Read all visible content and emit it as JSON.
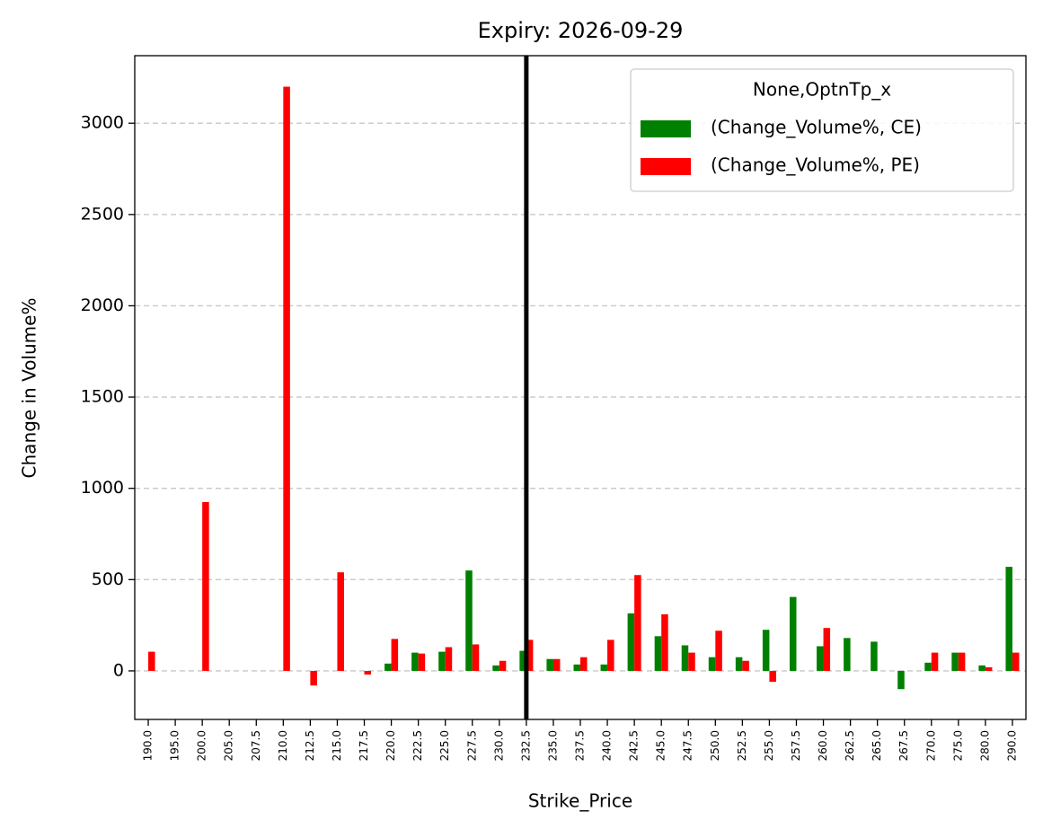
{
  "chart_data": {
    "type": "bar",
    "title": "Expiry: 2026-09-29",
    "x_label": "Strike_Price",
    "y_label": "Change in Volume%",
    "legend_title": "None,OptnTp_x",
    "legend_position": "upper right",
    "categories": [
      "190.0",
      "195.0",
      "200.0",
      "205.0",
      "207.5",
      "210.0",
      "212.5",
      "215.0",
      "217.5",
      "220.0",
      "222.5",
      "225.0",
      "227.5",
      "230.0",
      "232.5",
      "235.0",
      "237.5",
      "240.0",
      "242.5",
      "245.0",
      "247.5",
      "250.0",
      "252.5",
      "255.0",
      "257.5",
      "260.0",
      "262.5",
      "265.0",
      "267.5",
      "270.0",
      "275.0",
      "280.0",
      "290.0"
    ],
    "series": [
      {
        "name": "(Change_Volume%, CE)",
        "color": "#008000",
        "values": [
          null,
          null,
          null,
          null,
          null,
          null,
          null,
          null,
          null,
          40,
          100,
          105,
          550,
          30,
          110,
          65,
          35,
          35,
          315,
          190,
          140,
          75,
          75,
          225,
          405,
          135,
          180,
          160,
          -100,
          45,
          100,
          30,
          570
        ]
      },
      {
        "name": "(Change_Volume%, PE)",
        "color": "#ff0000",
        "values": [
          105,
          null,
          925,
          null,
          null,
          3200,
          -80,
          540,
          -20,
          175,
          95,
          130,
          145,
          55,
          170,
          65,
          75,
          170,
          525,
          310,
          100,
          220,
          55,
          -60,
          null,
          235,
          null,
          null,
          null,
          100,
          100,
          20,
          100
        ]
      }
    ],
    "ylim": [
      -266,
      3370
    ],
    "yticks": [
      0,
      500,
      1000,
      1500,
      2000,
      2500,
      3000
    ],
    "grid": true,
    "marker_category_index": 14
  }
}
